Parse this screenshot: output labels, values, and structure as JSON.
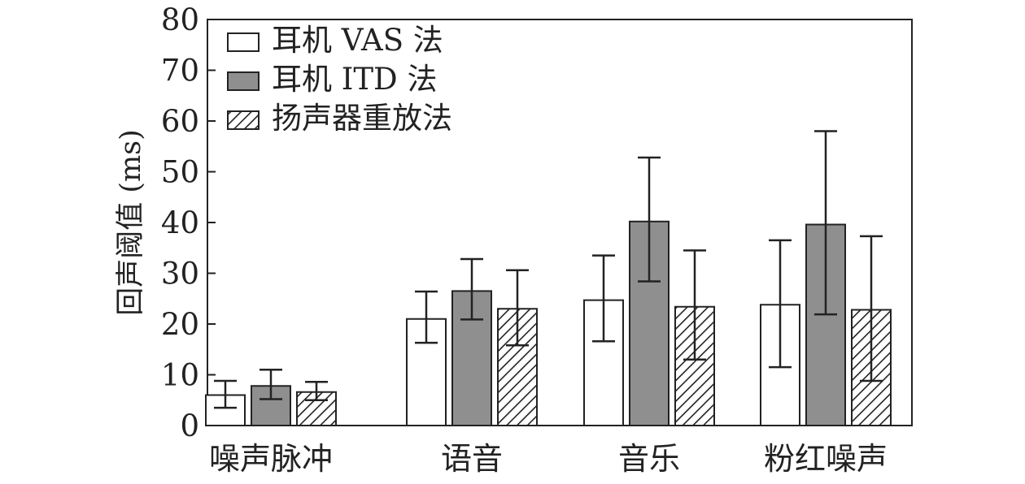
{
  "chart_data": {
    "type": "bar",
    "title": "",
    "xlabel": "",
    "ylabel": "回声阈值 (ms)",
    "ylim": [
      0,
      80
    ],
    "yticks": [
      "0",
      "10",
      "20",
      "30",
      "40",
      "50",
      "60",
      "70",
      "80"
    ],
    "categories": [
      "噪声脉冲",
      "语音",
      "音乐",
      "粉红噪声"
    ],
    "grid": false,
    "legend_position": "top-left",
    "series": [
      {
        "name": "耳机 VAS 法",
        "fill": "white",
        "color": "#ffffff",
        "values": [
          6,
          21,
          24.7,
          23.8
        ],
        "errors": [
          [
            3.5,
            8.8
          ],
          [
            16.3,
            26.4
          ],
          [
            16.6,
            33.5
          ],
          [
            11.5,
            36.5
          ]
        ]
      },
      {
        "name": "耳机 ITD 法",
        "fill": "solid",
        "color": "#8f8f8f",
        "values": [
          7.8,
          26.5,
          40.2,
          39.6
        ],
        "errors": [
          [
            5.2,
            11
          ],
          [
            20.9,
            32.8
          ],
          [
            28.4,
            52.8
          ],
          [
            21.9,
            58
          ]
        ]
      },
      {
        "name": "扬声器重放法",
        "fill": "hatched",
        "color": "#222222",
        "values": [
          6.6,
          23,
          23.4,
          22.8
        ],
        "errors": [
          [
            5,
            8.6
          ],
          [
            15.8,
            30.6
          ],
          [
            13,
            34.5
          ],
          [
            8.8,
            37.3
          ]
        ]
      }
    ]
  }
}
